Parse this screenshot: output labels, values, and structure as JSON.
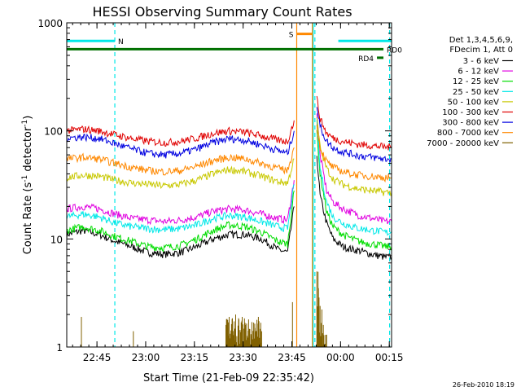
{
  "chart_data": {
    "type": "line",
    "title": "HESSI Observing Summary Count Rates",
    "xlabel": "Start Time (21-Feb-09 22:35:42)",
    "ylabel_main": "Count Rate (s",
    "ylabel_sup1": "-1",
    "ylabel_mid": " detector",
    "ylabel_sup2": "-1",
    "ylabel_end": ")",
    "y_scale": "log",
    "ylim": [
      1,
      1000
    ],
    "xlim": [
      "22:35:42",
      "00:16:00"
    ],
    "x_ticks": [
      "22:45",
      "23:00",
      "23:15",
      "23:30",
      "23:45",
      "00:00",
      "00:15"
    ],
    "x_tick_minutes": [
      9.3,
      24.3,
      39.3,
      54.3,
      69.3,
      84.3,
      99.3
    ],
    "y_ticks": [
      "1",
      "10",
      "100",
      "1000"
    ],
    "y_tick_values": [
      1,
      10,
      100,
      1000
    ],
    "legend": {
      "placement": "right",
      "header": [
        "Det 1,3,4,5,6,9,",
        "FDecim 1, Att 0"
      ],
      "entries": [
        {
          "label": "3 - 6 keV",
          "color": "#000000"
        },
        {
          "label": "6 - 12 keV",
          "color": "#e000e0"
        },
        {
          "label": "12 - 25 keV",
          "color": "#00dd00"
        },
        {
          "label": "25 - 50 keV",
          "color": "#00e8e8"
        },
        {
          "label": "50 - 100 keV",
          "color": "#c8c800"
        },
        {
          "label": "100 - 300 keV",
          "color": "#e00000"
        },
        {
          "label": "300 - 800 keV",
          "color": "#0000e0"
        },
        {
          "label": "800 - 7000 keV",
          "color": "#ff8800"
        },
        {
          "label": "7000 - 20000 keV",
          "color": "#806000"
        }
      ]
    },
    "bars": [
      {
        "label": "N",
        "color": "#00e8e8",
        "x0": 0,
        "x1": 14.8,
        "y": 680,
        "label_pos": "right"
      },
      {
        "label": "",
        "color": "#00e8e8",
        "x0": 83.6,
        "x1": 100,
        "y": 680
      },
      {
        "label": "S",
        "color": "#ff8800",
        "x0": 70.8,
        "x1": 75.6,
        "y": 790,
        "label_pos": "left"
      },
      {
        "label": "RD0",
        "color": "#007000",
        "x0": 0,
        "x1": 97.5,
        "y": 570,
        "label_pos": "right"
      },
      {
        "label": "RD4",
        "color": "#007000",
        "x0": 95.5,
        "x1": 97.5,
        "y": 475,
        "label_pos": "left"
      }
    ],
    "vlines": [
      {
        "x": 14.8,
        "color": "#00e8e8",
        "style": "dashed"
      },
      {
        "x": 70.8,
        "color": "#ff8800",
        "style": "solid"
      },
      {
        "x": 75.6,
        "color": "#ff8800",
        "style": "solid"
      },
      {
        "x": 75.9,
        "color": "#00e8e8",
        "style": "solid"
      },
      {
        "x": 76.4,
        "color": "#00e8e8",
        "style": "dashed"
      },
      {
        "x": 99.4,
        "color": "#00e8e8",
        "style": "dashed"
      }
    ],
    "series": [
      {
        "name": "3 - 6 keV",
        "color": "#000000",
        "x": [
          0,
          5,
          10,
          15,
          20,
          25,
          30,
          35,
          40,
          45,
          50,
          55,
          60,
          65,
          68,
          70,
          71,
          76,
          77,
          78,
          80,
          82,
          85,
          88,
          90,
          92,
          94,
          96,
          98,
          100
        ],
        "y": [
          11,
          12,
          11,
          9.5,
          8.5,
          7.5,
          7.2,
          7.5,
          8.5,
          10,
          11,
          11,
          10,
          8,
          7.5,
          20,
          null,
          null,
          60,
          25,
          14,
          10,
          8.5,
          8,
          7.8,
          7.5,
          7.2,
          7,
          6.8,
          6.8
        ]
      },
      {
        "name": "6 - 12 keV",
        "color": "#e000e0",
        "x": [
          0,
          5,
          10,
          15,
          20,
          25,
          30,
          35,
          40,
          45,
          50,
          55,
          60,
          65,
          68,
          70,
          71,
          76,
          77,
          78,
          80,
          82,
          85,
          88,
          90,
          92,
          94,
          96,
          98,
          100
        ],
        "y": [
          19,
          20,
          19,
          17,
          15.5,
          15,
          14.5,
          15,
          16,
          18,
          19,
          18.5,
          17,
          15.5,
          15,
          35,
          null,
          null,
          150,
          60,
          28,
          22,
          19,
          17.5,
          16.5,
          16,
          15.5,
          15,
          14.5,
          14.5
        ]
      },
      {
        "name": "12 - 25 keV",
        "color": "#00dd00",
        "x": [
          0,
          5,
          10,
          15,
          20,
          25,
          30,
          35,
          40,
          45,
          50,
          55,
          60,
          65,
          68,
          70,
          71,
          76,
          77,
          78,
          80,
          82,
          85,
          88,
          90,
          92,
          94,
          96,
          98,
          100
        ],
        "y": [
          12,
          13,
          12,
          10.5,
          9.5,
          8.5,
          8.3,
          8.7,
          10,
          12,
          13.5,
          13,
          11.5,
          9.5,
          9,
          28,
          null,
          null,
          100,
          40,
          18,
          13,
          11,
          10,
          9.5,
          9.2,
          9,
          8.8,
          8.5,
          8.5
        ]
      },
      {
        "name": "25 - 50 keV",
        "color": "#00e8e8",
        "x": [
          0,
          5,
          10,
          15,
          20,
          25,
          30,
          35,
          40,
          45,
          50,
          55,
          60,
          65,
          68,
          70,
          71,
          76,
          77,
          78,
          80,
          82,
          85,
          88,
          90,
          92,
          94,
          96,
          98,
          100
        ],
        "y": [
          16,
          17,
          16,
          14,
          13,
          12.5,
          12.2,
          12.5,
          13.5,
          15.5,
          16.5,
          16,
          14.5,
          13,
          12.5,
          32,
          null,
          null,
          120,
          45,
          22,
          16,
          14,
          13,
          12.5,
          12.3,
          12,
          11.8,
          11.5,
          11.5
        ]
      },
      {
        "name": "50 - 100 keV",
        "color": "#c8c800",
        "x": [
          0,
          5,
          10,
          15,
          20,
          25,
          30,
          35,
          40,
          45,
          50,
          55,
          60,
          65,
          68,
          70,
          71,
          76,
          77,
          78,
          80,
          82,
          85,
          88,
          90,
          92,
          94,
          96,
          98,
          100
        ],
        "y": [
          37,
          39,
          38,
          35,
          33,
          32,
          31,
          32,
          35,
          40,
          44,
          42,
          38,
          34,
          33,
          55,
          null,
          null,
          130,
          70,
          45,
          36,
          32,
          30,
          29,
          28.5,
          28,
          27.5,
          27,
          27
        ]
      },
      {
        "name": "100 - 300 keV",
        "color": "#e00000",
        "x": [
          0,
          5,
          10,
          15,
          20,
          25,
          30,
          35,
          40,
          45,
          50,
          55,
          60,
          65,
          68,
          70,
          71,
          76,
          77,
          78,
          80,
          82,
          85,
          88,
          90,
          92,
          94,
          96,
          98,
          100
        ],
        "y": [
          100,
          104,
          100,
          92,
          85,
          80,
          78,
          80,
          86,
          95,
          100,
          97,
          90,
          82,
          80,
          125,
          null,
          null,
          200,
          130,
          95,
          86,
          80,
          77,
          75,
          74,
          73,
          72,
          71,
          71
        ]
      },
      {
        "name": "300 - 800 keV",
        "color": "#0000e0",
        "x": [
          0,
          5,
          10,
          15,
          20,
          25,
          30,
          35,
          40,
          45,
          50,
          55,
          60,
          65,
          68,
          70,
          71,
          76,
          77,
          78,
          80,
          82,
          85,
          88,
          90,
          92,
          94,
          96,
          98,
          100
        ],
        "y": [
          86,
          88,
          85,
          76,
          68,
          62,
          60,
          62,
          68,
          78,
          85,
          82,
          74,
          66,
          62,
          100,
          null,
          null,
          170,
          110,
          80,
          70,
          64,
          61,
          59,
          58,
          57,
          56,
          55,
          55
        ]
      },
      {
        "name": "800 - 7000 keV",
        "color": "#ff8800",
        "x": [
          0,
          5,
          10,
          15,
          20,
          25,
          30,
          35,
          40,
          45,
          50,
          55,
          60,
          65,
          68,
          70,
          71,
          76,
          77,
          78,
          80,
          82,
          85,
          88,
          90,
          92,
          94,
          96,
          98,
          100
        ],
        "y": [
          55,
          57,
          55,
          50,
          46,
          43,
          42,
          43,
          47,
          53,
          57,
          55,
          50,
          45,
          43,
          70,
          null,
          null,
          110,
          70,
          52,
          46,
          42,
          40,
          39,
          38.5,
          38,
          37.5,
          37,
          37
        ]
      },
      {
        "name": "7000 - 20000 keV",
        "color": "#806000",
        "x": [
          0,
          4,
          4.5,
          5,
          20,
          20.5,
          21,
          48,
          49,
          50,
          51,
          52,
          53,
          54,
          55,
          56,
          57,
          58,
          59,
          60,
          61,
          69,
          69.5,
          70,
          76,
          77,
          77.5,
          78,
          79,
          80,
          81,
          83,
          100
        ],
        "y": [
          null,
          null,
          1.9,
          null,
          null,
          1.4,
          null,
          null,
          1.6,
          1.9,
          1.7,
          2.0,
          1.8,
          1.9,
          1.6,
          1.8,
          1.7,
          1.5,
          1.9,
          1.4,
          null,
          null,
          2.6,
          null,
          null,
          5.0,
          3.5,
          2.4,
          1.6,
          1.3,
          null,
          null,
          null
        ]
      }
    ]
  },
  "footer_stamp": "26-Feb-2010 18:19"
}
